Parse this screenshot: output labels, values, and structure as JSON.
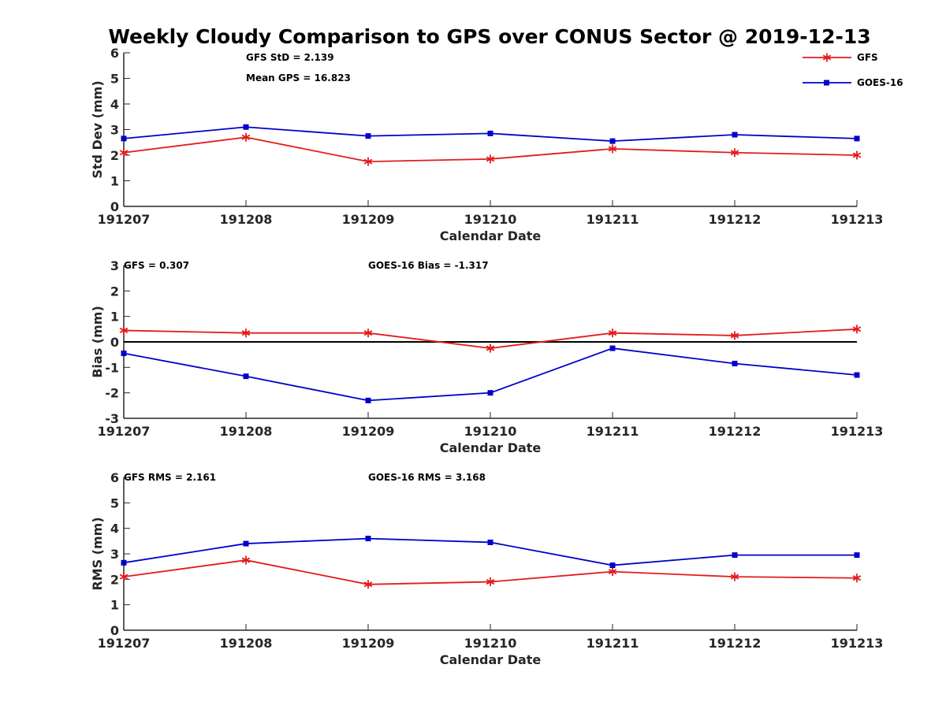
{
  "title": "Weekly Cloudy Comparison to GPS over CONUS Sector @ 2019-12-13",
  "colors": {
    "GFS": "#e41a1c",
    "GOES-16": "#0000cc"
  },
  "legend": {
    "placement": "top-right",
    "items": [
      "GFS",
      "GOES-16"
    ]
  },
  "chart_data": [
    {
      "type": "line",
      "categories": [
        "191207",
        "191208",
        "191209",
        "191210",
        "191211",
        "191212",
        "191213"
      ],
      "xlabel": "Calendar Date",
      "ylabel": "Std Dev (mm)",
      "ylim": [
        0,
        6
      ],
      "yticks": [
        0,
        1,
        2,
        3,
        4,
        5,
        6
      ],
      "zero_line": false,
      "annotations": [
        "GFS StD = 2.139",
        "Mean GPS = 16.823"
      ],
      "series": [
        {
          "name": "GFS",
          "marker": "asterisk",
          "values": [
            2.1,
            2.7,
            1.75,
            1.85,
            2.25,
            2.1,
            2.0
          ]
        },
        {
          "name": "GOES-16",
          "marker": "square",
          "values": [
            2.65,
            3.1,
            2.75,
            2.85,
            2.55,
            2.8,
            2.65
          ]
        }
      ]
    },
    {
      "type": "line",
      "categories": [
        "191207",
        "191208",
        "191209",
        "191210",
        "191211",
        "191212",
        "191213"
      ],
      "xlabel": "Calendar Date",
      "ylabel": "Bias (mm)",
      "ylim": [
        -3,
        3
      ],
      "yticks": [
        -3,
        -2,
        -1,
        0,
        1,
        2,
        3
      ],
      "zero_line": true,
      "annotations": [
        "GFS = 0.307",
        "GOES-16 Bias  = -1.317"
      ],
      "series": [
        {
          "name": "GFS",
          "marker": "asterisk",
          "values": [
            0.45,
            0.35,
            0.35,
            -0.25,
            0.35,
            0.25,
            0.5
          ]
        },
        {
          "name": "GOES-16",
          "marker": "square",
          "values": [
            -0.45,
            -1.35,
            -2.3,
            -2.0,
            -0.25,
            -0.85,
            -1.3
          ]
        }
      ]
    },
    {
      "type": "line",
      "categories": [
        "191207",
        "191208",
        "191209",
        "191210",
        "191211",
        "191212",
        "191213"
      ],
      "xlabel": "Calendar Date",
      "ylabel": "RMS (mm)",
      "ylim": [
        0,
        6
      ],
      "yticks": [
        0,
        1,
        2,
        3,
        4,
        5,
        6
      ],
      "zero_line": false,
      "annotations": [
        "GFS RMS = 2.161",
        "GOES-16 RMS = 3.168"
      ],
      "series": [
        {
          "name": "GFS",
          "marker": "asterisk",
          "values": [
            2.1,
            2.75,
            1.8,
            1.9,
            2.3,
            2.1,
            2.05
          ]
        },
        {
          "name": "GOES-16",
          "marker": "square",
          "values": [
            2.65,
            3.4,
            3.6,
            3.45,
            2.55,
            2.95,
            2.95
          ]
        }
      ]
    }
  ]
}
